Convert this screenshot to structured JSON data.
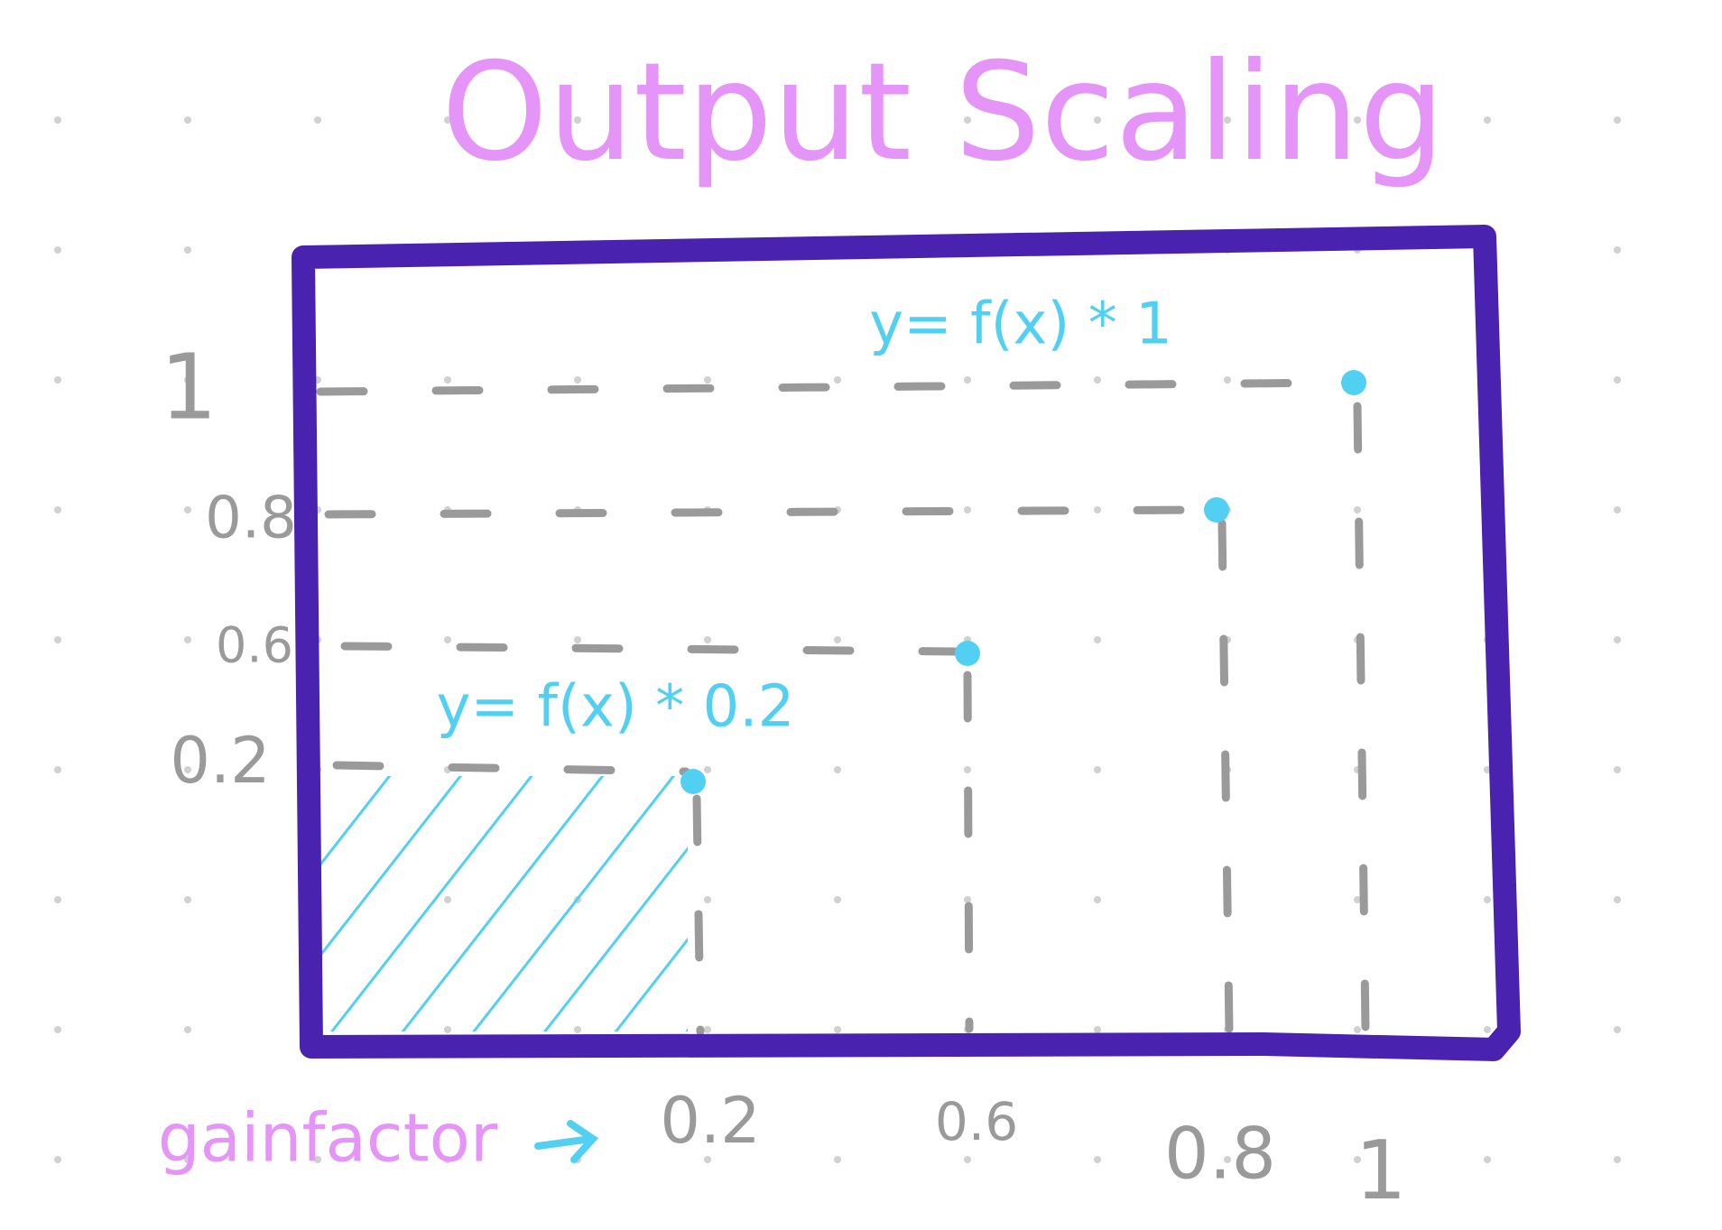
{
  "title": "Output Scaling",
  "y_labels": [
    "1",
    "0.8",
    "0.6",
    "0.2"
  ],
  "x_labels": [
    "0.2",
    "0.6",
    "0.8",
    "1"
  ],
  "x_axis_label": "gainfactor",
  "annotations": [
    "y= f(x) * 1",
    "y= f(x) * 0.2"
  ]
}
